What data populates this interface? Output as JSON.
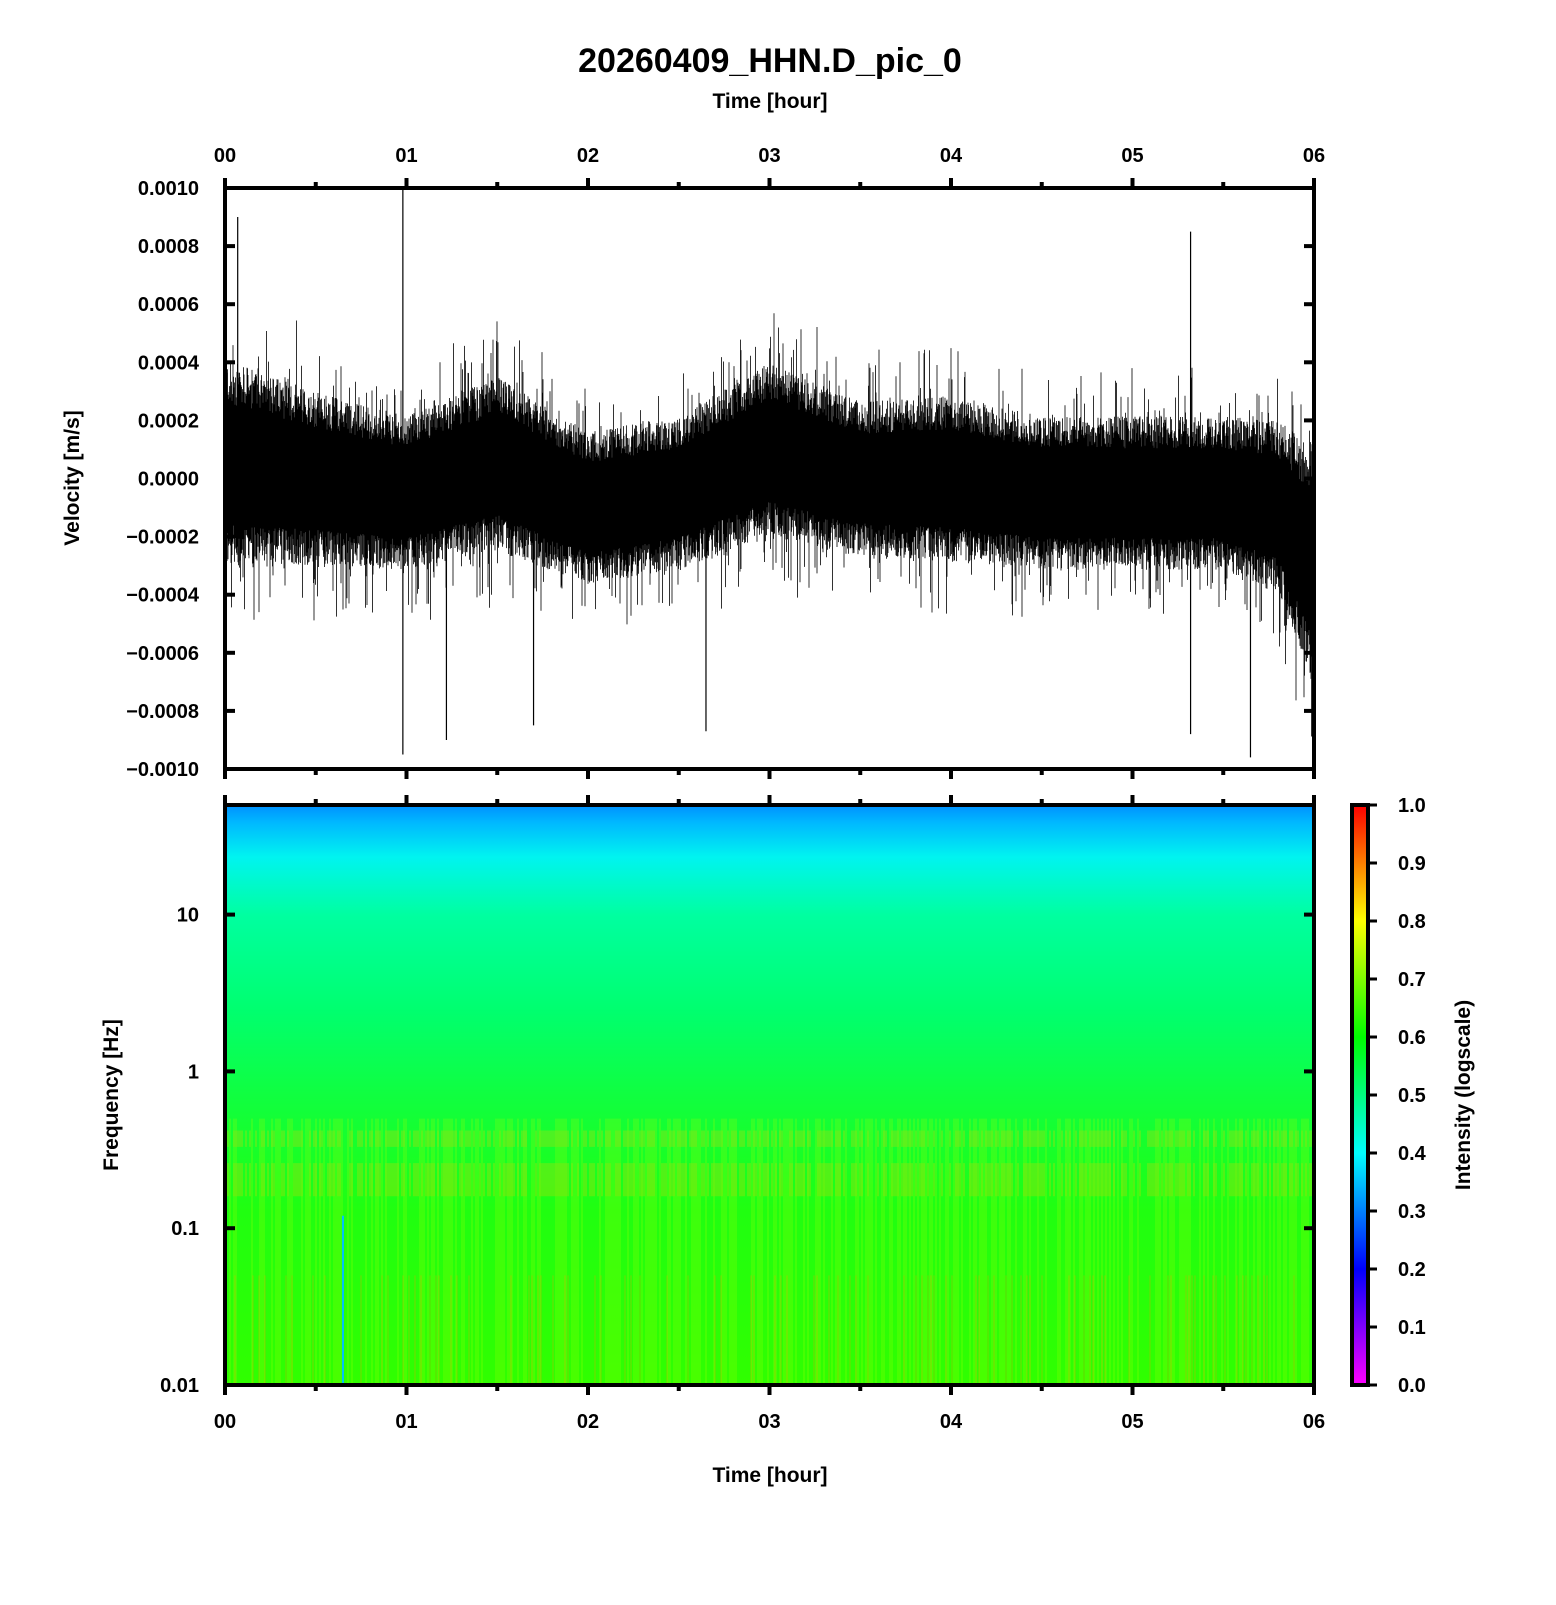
{
  "title": "20260409_HHN.D_pic_0",
  "chart_data": [
    {
      "type": "line",
      "name": "velocity-waveform",
      "title": "20260409_HHN.D_pic_0",
      "xlabel": "Time [hour]",
      "ylabel": "Velocity [m/s]",
      "xlim": [
        0,
        6
      ],
      "ylim": [
        -0.001,
        0.001
      ],
      "x_ticks": [
        "00",
        "01",
        "02",
        "03",
        "04",
        "05",
        "06"
      ],
      "y_ticks": [
        "0.0010",
        "0.0008",
        "0.0006",
        "0.0004",
        "0.0002",
        "0.0000",
        "−0.0002",
        "−0.0004",
        "−0.0006",
        "−0.0008",
        "−0.0010"
      ],
      "y_tick_values": [
        0.001,
        0.0008,
        0.0006,
        0.0004,
        0.0002,
        0,
        -0.0002,
        -0.0004,
        -0.0006,
        -0.0008,
        -0.001
      ],
      "envelope": {
        "t": [
          0,
          0.5,
          1,
          1.5,
          2,
          2.5,
          3,
          3.5,
          4,
          4.5,
          5,
          5.5,
          5.8,
          6
        ],
        "mean": [
          5e-05,
          0.0,
          -5e-05,
          5e-05,
          -0.0001,
          -5e-05,
          0.0001,
          0.0,
          0.0,
          -5e-05,
          -5e-05,
          -5e-05,
          -0.0001,
          -0.0003
        ],
        "half_width": [
          0.0003,
          0.00025,
          0.00022,
          0.00025,
          0.00022,
          0.00022,
          0.00025,
          0.00022,
          0.00024,
          0.00022,
          0.00022,
          0.00022,
          0.00025,
          0.00035
        ]
      },
      "spikes": [
        [
          0.07,
          0.0009
        ],
        [
          0.98,
          0.001
        ],
        [
          0.98,
          -0.00095
        ],
        [
          1.22,
          -0.0009
        ],
        [
          1.7,
          -0.00085
        ],
        [
          5.32,
          0.00085
        ],
        [
          5.32,
          -0.00088
        ],
        [
          5.65,
          -0.00096
        ],
        [
          2.65,
          -0.00087
        ]
      ]
    },
    {
      "type": "heatmap",
      "name": "spectrogram",
      "xlabel": "Time [hour]",
      "ylabel": "Frequency [Hz]",
      "xlim": [
        0,
        6
      ],
      "ylim": [
        0.01,
        50
      ],
      "yscale": "log",
      "x_ticks": [
        "00",
        "01",
        "02",
        "03",
        "04",
        "05",
        "06"
      ],
      "y_ticks": [
        "10",
        "1",
        "0.1",
        "0.01"
      ],
      "y_tick_values": [
        10,
        1,
        0.1,
        0.01
      ],
      "intensity_profile": {
        "freq_hz": [
          50,
          30,
          10,
          1,
          0.4,
          0.35,
          0.3,
          0.22,
          0.18,
          0.1,
          0.01
        ],
        "intensity": [
          0.33,
          0.42,
          0.5,
          0.57,
          0.6,
          0.68,
          0.6,
          0.68,
          0.6,
          0.62,
          0.64
        ]
      },
      "colorbar": {
        "label": "Intensity (logscale)",
        "range": [
          0,
          1
        ],
        "ticks": [
          "0.0",
          "0.1",
          "0.2",
          "0.3",
          "0.4",
          "0.5",
          "0.6",
          "0.7",
          "0.8",
          "0.9",
          "1.0"
        ],
        "colors": [
          "#ff00ff",
          "#0000ff",
          "#00ffff",
          "#00ff00",
          "#ffff00",
          "#ff0000"
        ]
      }
    }
  ]
}
